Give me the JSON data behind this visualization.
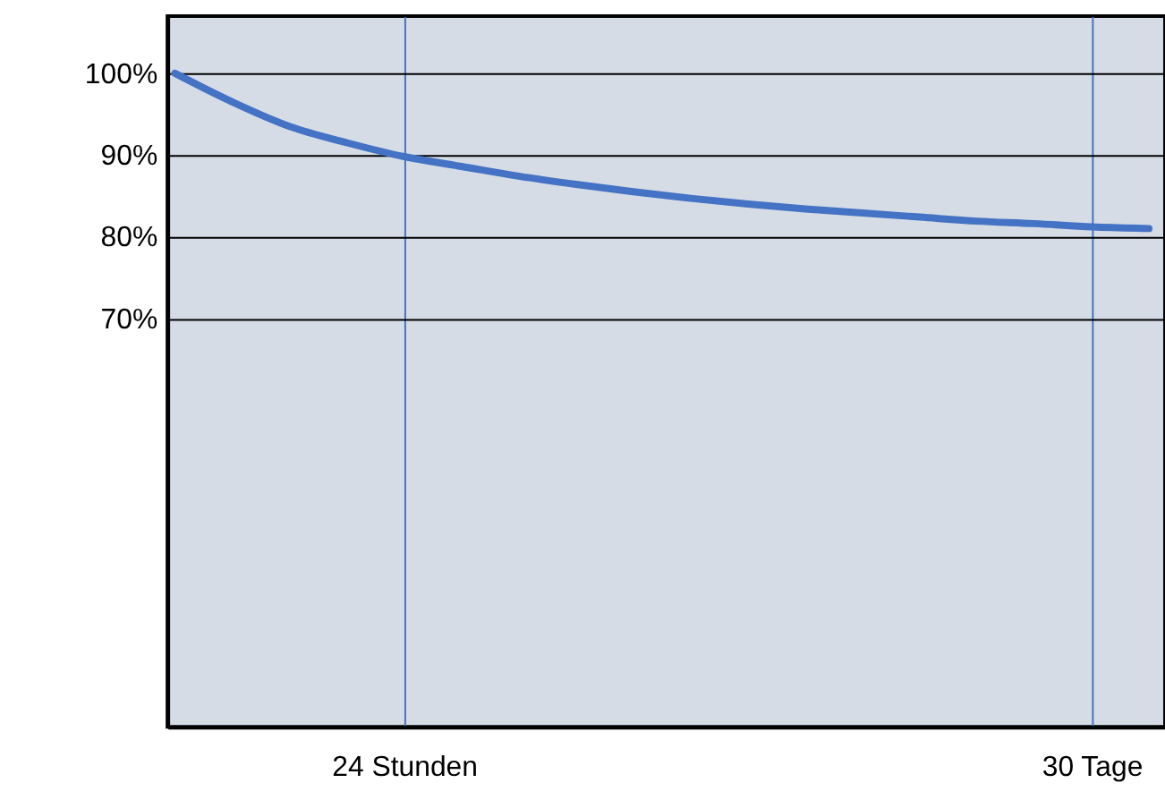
{
  "chart_data": {
    "type": "line",
    "categories": [
      null,
      null,
      null,
      null,
      "24 Stunden",
      null,
      null,
      null,
      null,
      null,
      null,
      null,
      null,
      null,
      null,
      null,
      "30 Tage",
      null
    ],
    "series": [
      {
        "color": "#4472c4",
        "values": [
          100,
          96.5,
          93.5,
          91.5,
          89.8,
          88.6,
          87.4,
          86.4,
          85.5,
          84.7,
          84.0,
          83.4,
          82.9,
          82.4,
          81.9,
          81.6,
          81.2,
          81.0
        ]
      }
    ],
    "ylim": [
      20,
      107
    ],
    "yticks": [
      {
        "value": 70,
        "label": "70%"
      },
      {
        "value": 80,
        "label": "80%"
      },
      {
        "value": 90,
        "label": "90%"
      },
      {
        "value": 100,
        "label": "100%"
      }
    ],
    "grid": true,
    "marker": "none",
    "line_style": "solid"
  }
}
